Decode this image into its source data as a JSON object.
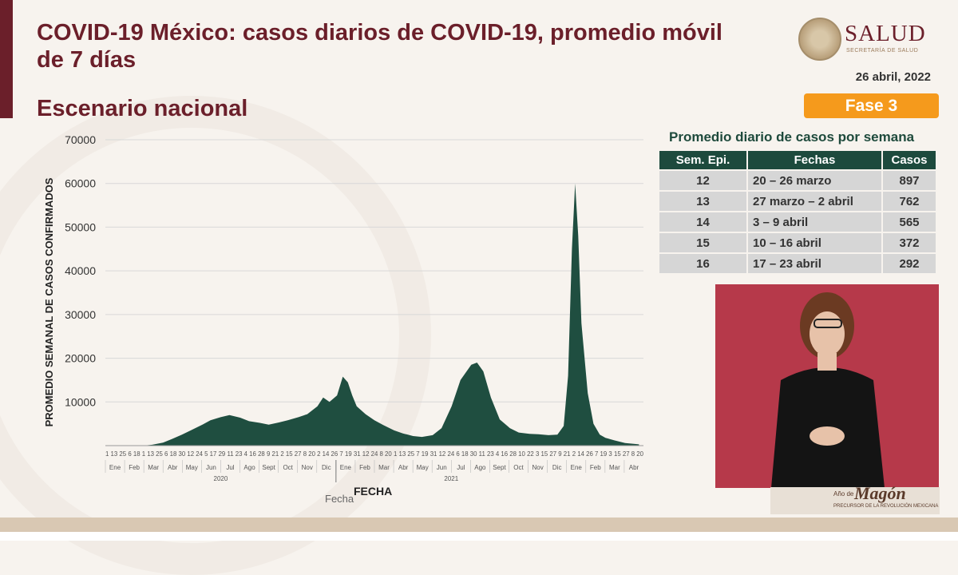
{
  "header": {
    "title": "COVID-19 México: casos diarios de COVID-19, promedio móvil de 7 días",
    "subtitle": "Escenario nacional",
    "logo_text": "SALUD",
    "logo_subtext": "SECRETARÍA DE SALUD",
    "date": "26 abril, 2022",
    "phase_badge": "Fase 3"
  },
  "weekly_table": {
    "title": "Promedio diario de casos por semana",
    "headers": [
      "Sem. Epi.",
      "Fechas",
      "Casos"
    ],
    "rows": [
      {
        "week": "12",
        "dates": "20 – 26 marzo",
        "cases": "897"
      },
      {
        "week": "13",
        "dates": "27 marzo – 2 abril",
        "cases": "762"
      },
      {
        "week": "14",
        "dates": "3 – 9 abril",
        "cases": "565"
      },
      {
        "week": "15",
        "dates": "10 – 16 abril",
        "cases": "372"
      },
      {
        "week": "16",
        "dates": "17 – 23 abril",
        "cases": "292"
      }
    ]
  },
  "banner": {
    "text_main": "Magón",
    "text_year": "Año de",
    "text_sub": "PRECURSOR DE LA REVOLUCIÓN MEXICANA"
  },
  "colors": {
    "title": "#6b1f2a",
    "area_fill": "#1f4e40",
    "phase": "#f59a1c",
    "table_header": "#1d4a3d",
    "interpreter_bg": "#b6394a"
  },
  "chart_data": {
    "type": "area",
    "ylabel": "PROMEDIO  SEMANAL DE CASOS CONFIRMADOS",
    "xlabel": "FECHA",
    "xlabel_secondary": "Fecha",
    "ylim": [
      0,
      70000
    ],
    "yticks": [
      10000,
      20000,
      30000,
      40000,
      50000,
      60000,
      70000
    ],
    "grid": true,
    "months": [
      "Ene",
      "Feb",
      "Mar",
      "Abr",
      "May",
      "Jun",
      "Jul",
      "Ago",
      "Sept",
      "Oct",
      "Nov",
      "Dic",
      "Ene",
      "Feb",
      "Mar",
      "Abr",
      "May",
      "Jun",
      "Jul",
      "Ago",
      "Sept",
      "Oct",
      "Nov",
      "Dic",
      "Ene",
      "Feb",
      "Mar",
      "Abr"
    ],
    "years": [
      "2020",
      "2021"
    ],
    "day_ticks": "1 13 25 6 18 1 13 25 6 18 30 12 24 5 17 29 11 23 4 16 28 9 21 2 15 27 8 20 2 14 26 7 19 31 12 24 8 20 1 13 25 7 19 31 12 24 6 18 30 11 23 4 16 28 10 22 3 15 27 9 21 2 14 26 7 19 3 15 27 8 20",
    "x": [
      "2020-01-01",
      "2020-03-01",
      "2020-03-15",
      "2020-04-01",
      "2020-04-15",
      "2020-05-01",
      "2020-05-15",
      "2020-06-01",
      "2020-06-15",
      "2020-07-01",
      "2020-07-15",
      "2020-08-01",
      "2020-08-15",
      "2020-09-01",
      "2020-09-15",
      "2020-10-01",
      "2020-10-15",
      "2020-11-01",
      "2020-11-15",
      "2020-12-01",
      "2020-12-10",
      "2020-12-20",
      "2021-01-01",
      "2021-01-10",
      "2021-01-18",
      "2021-01-25",
      "2021-02-01",
      "2021-02-15",
      "2021-03-01",
      "2021-03-15",
      "2021-04-01",
      "2021-04-15",
      "2021-05-01",
      "2021-05-15",
      "2021-06-01",
      "2021-06-15",
      "2021-07-01",
      "2021-07-15",
      "2021-08-01",
      "2021-08-10",
      "2021-08-20",
      "2021-09-01",
      "2021-09-15",
      "2021-10-01",
      "2021-10-15",
      "2021-11-01",
      "2021-11-15",
      "2021-12-01",
      "2021-12-15",
      "2021-12-25",
      "2022-01-01",
      "2022-01-07",
      "2022-01-12",
      "2022-01-17",
      "2022-01-22",
      "2022-02-01",
      "2022-02-10",
      "2022-02-20",
      "2022-03-01",
      "2022-03-15",
      "2022-04-01",
      "2022-04-23"
    ],
    "y": [
      0,
      0,
      200,
      700,
      1500,
      2500,
      3500,
      4700,
      5800,
      6500,
      7000,
      6400,
      5600,
      5200,
      4800,
      5300,
      5800,
      6500,
      7200,
      9000,
      11000,
      10000,
      11500,
      15800,
      14500,
      11500,
      9000,
      7200,
      5800,
      4700,
      3500,
      2800,
      2200,
      2000,
      2400,
      4000,
      9000,
      15000,
      18500,
      19000,
      17000,
      11000,
      6000,
      4000,
      3000,
      2700,
      2600,
      2400,
      2500,
      4500,
      16000,
      45000,
      60000,
      48000,
      28000,
      12000,
      5000,
      2500,
      1800,
      1200,
      600,
      300
    ]
  }
}
